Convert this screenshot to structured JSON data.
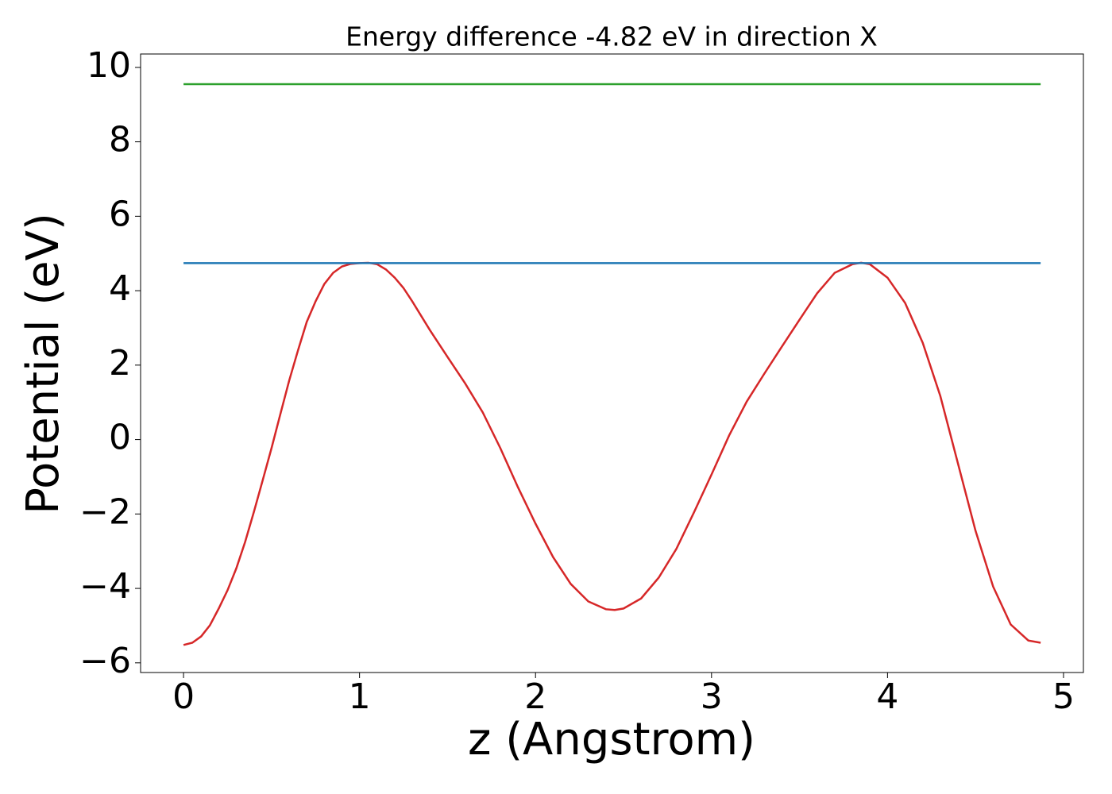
{
  "chart_data": {
    "type": "line",
    "title": "Energy difference -4.82 eV in direction X",
    "x_label": "z (Angstrom)",
    "y_label": "Potential (eV)",
    "xlim": [
      -0.244,
      5.113
    ],
    "ylim": [
      -6.26,
      10.36
    ],
    "xticks": [
      0,
      1,
      2,
      3,
      4,
      5
    ],
    "yticks": [
      {
        "value": -6,
        "label": "−6"
      },
      {
        "value": -4,
        "label": "−4"
      },
      {
        "value": -2,
        "label": "−2"
      },
      0,
      2,
      4,
      6,
      8,
      10
    ],
    "grid": false,
    "series": [
      {
        "color": "#d62728",
        "x": [
          0,
          0.05,
          0.1,
          0.15,
          0.2,
          0.25,
          0.3,
          0.35,
          0.4,
          0.45,
          0.5,
          0.55,
          0.6,
          0.65,
          0.7,
          0.75,
          0.8,
          0.85,
          0.9,
          0.95,
          1.0,
          1.05,
          1.1,
          1.15,
          1.2,
          1.25,
          1.3,
          1.4,
          1.5,
          1.6,
          1.7,
          1.8,
          1.9,
          2.0,
          2.1,
          2.2,
          2.3,
          2.4,
          2.45,
          2.5,
          2.6,
          2.7,
          2.8,
          2.9,
          3.0,
          3.1,
          3.2,
          3.3,
          3.4,
          3.5,
          3.6,
          3.7,
          3.8,
          3.85,
          3.9,
          4.0,
          4.1,
          4.2,
          4.3,
          4.4,
          4.5,
          4.6,
          4.7,
          4.8,
          4.87
        ],
        "values": [
          -5.52,
          -5.46,
          -5.29,
          -4.99,
          -4.54,
          -4.05,
          -3.46,
          -2.75,
          -1.94,
          -1.09,
          -0.23,
          0.68,
          1.58,
          2.39,
          3.16,
          3.71,
          4.18,
          4.48,
          4.65,
          4.72,
          4.74,
          4.75,
          4.71,
          4.57,
          4.35,
          4.07,
          3.71,
          2.94,
          2.22,
          1.51,
          0.73,
          -0.23,
          -1.28,
          -2.26,
          -3.16,
          -3.88,
          -4.35,
          -4.56,
          -4.58,
          -4.54,
          -4.27,
          -3.71,
          -2.94,
          -1.96,
          -0.94,
          0.11,
          1.02,
          1.77,
          2.5,
          3.22,
          3.93,
          4.48,
          4.71,
          4.75,
          4.71,
          4.35,
          3.67,
          2.6,
          1.17,
          -0.64,
          -2.45,
          -3.95,
          -4.97,
          -5.4,
          -5.46
        ]
      },
      {
        "color": "#1f77b4",
        "x": [
          0,
          4.87
        ],
        "values": [
          4.74,
          4.74
        ]
      },
      {
        "color": "#2ca02c",
        "x": [
          0,
          4.87
        ],
        "values": [
          9.55,
          9.55
        ]
      }
    ]
  }
}
